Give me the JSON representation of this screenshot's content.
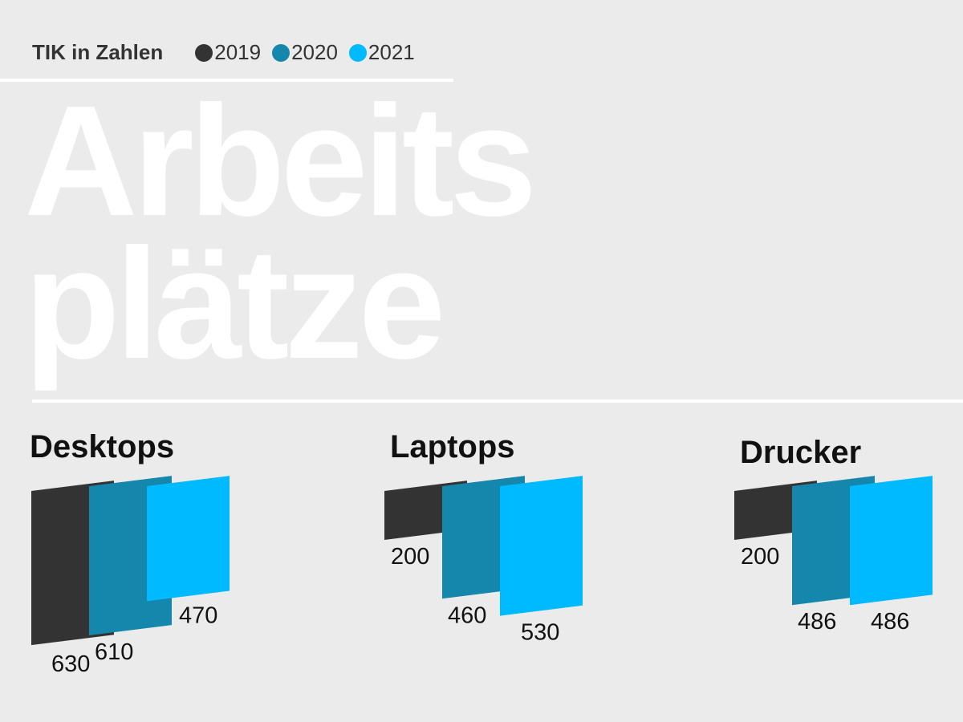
{
  "header": {
    "title": "TIK in Zahlen",
    "legend": [
      {
        "label": "2019",
        "color": "#333333"
      },
      {
        "label": "2020",
        "color": "#1587ac"
      },
      {
        "label": "2021",
        "color": "#00baff"
      }
    ]
  },
  "big_title": {
    "line1": "Arbeits",
    "line2": "plätze"
  },
  "chart_data": [
    {
      "type": "bar",
      "title": "Desktops",
      "categories": [
        "2019",
        "2020",
        "2021"
      ],
      "values": [
        630,
        610,
        470
      ],
      "colors": [
        "#333333",
        "#1587ac",
        "#00baff"
      ]
    },
    {
      "type": "bar",
      "title": "Laptops",
      "categories": [
        "2019",
        "2020",
        "2021"
      ],
      "values": [
        200,
        460,
        530
      ],
      "colors": [
        "#333333",
        "#1587ac",
        "#00baff"
      ]
    },
    {
      "type": "bar",
      "title": "Drucker",
      "categories": [
        "2019",
        "2020",
        "2021"
      ],
      "values": [
        200,
        486,
        486
      ],
      "colors": [
        "#333333",
        "#1587ac",
        "#00baff"
      ]
    }
  ]
}
